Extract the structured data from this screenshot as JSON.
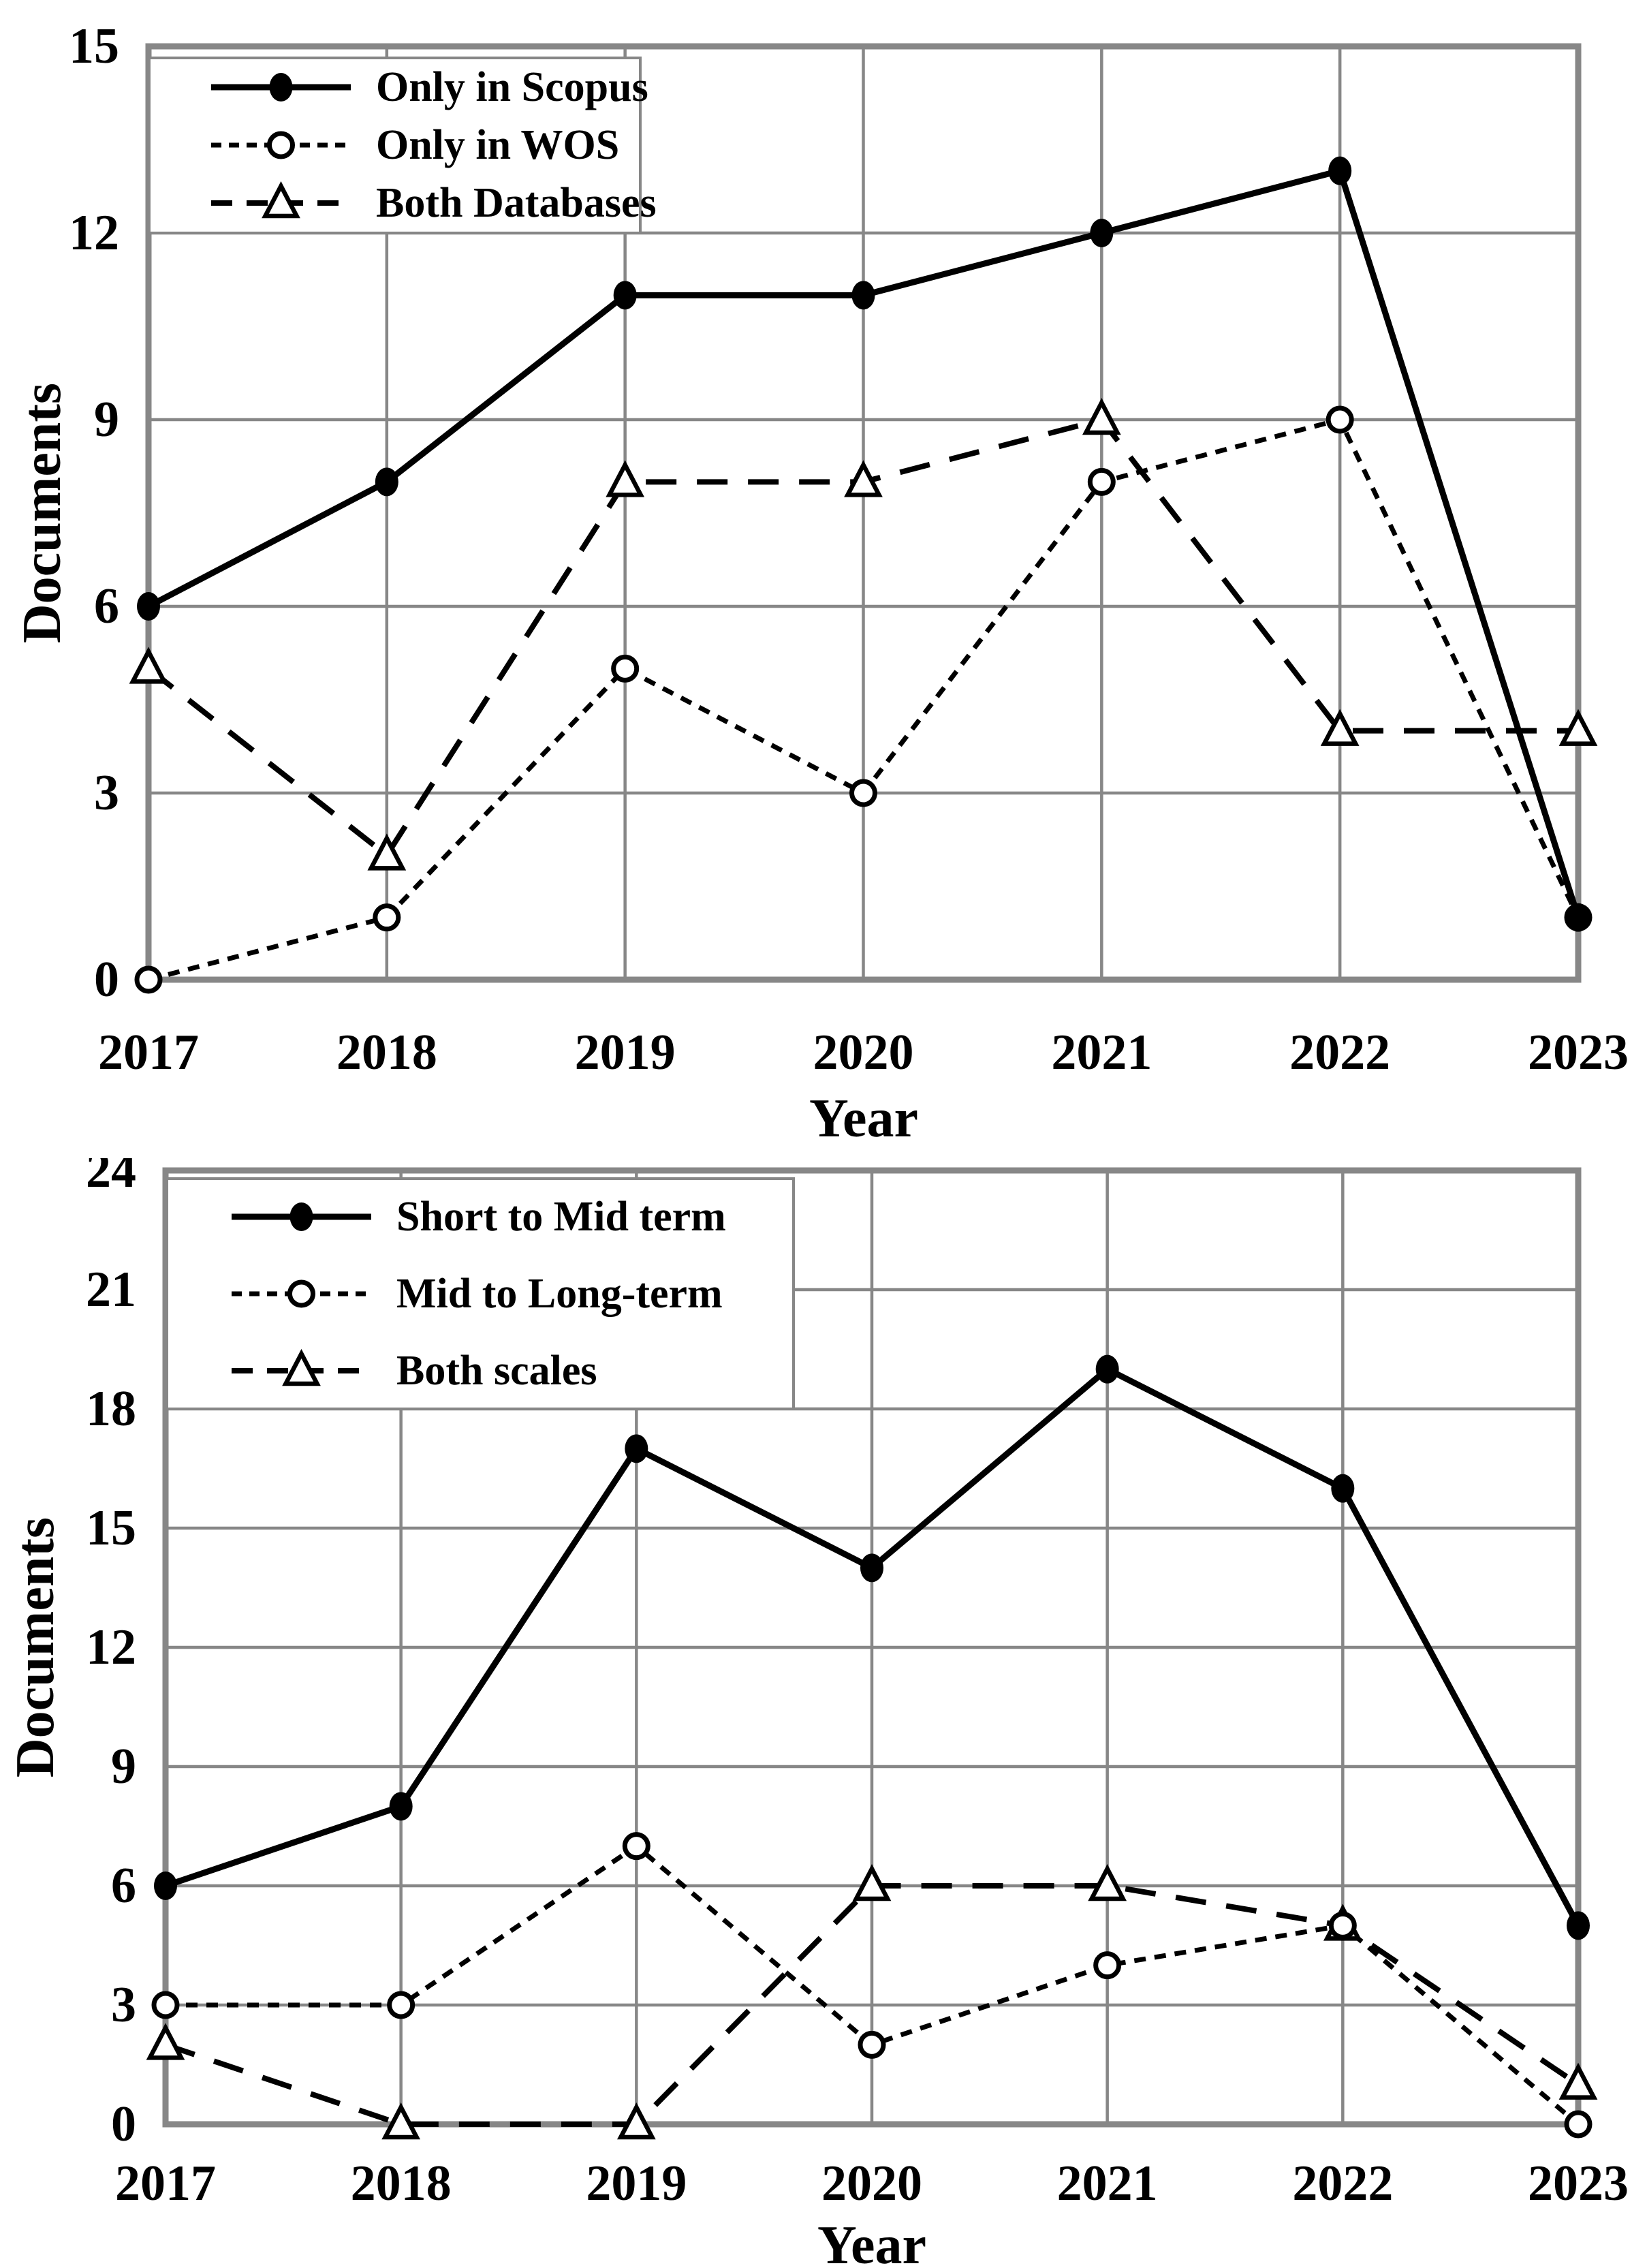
{
  "page": {
    "background": "#ffffff"
  },
  "colors": {
    "series": "#000000",
    "grid": "#878787",
    "text": "#000000",
    "legend_bg": "#ffffff"
  },
  "chart_data": [
    {
      "type": "line",
      "title": "",
      "categories": [
        "2017",
        "2018",
        "2019",
        "2020",
        "2021",
        "2022",
        "2023"
      ],
      "xlabel": "Year",
      "ylabel": "Documents",
      "ylim": [
        0,
        15
      ],
      "ytick_step": 3,
      "grid": true,
      "legend_position": "top-left",
      "series": [
        {
          "name": "Only in Scopus",
          "marker": "filled-circle-icon",
          "line": "solid",
          "values": [
            6,
            8,
            11,
            11,
            12,
            13,
            1
          ]
        },
        {
          "name": "Only in WOS",
          "marker": "open-circle-icon",
          "line": "dotted",
          "values": [
            0,
            1,
            5,
            3,
            8,
            9,
            1
          ]
        },
        {
          "name": "Both Databases",
          "marker": "open-triangle-icon",
          "line": "dashed",
          "values": [
            5,
            2,
            8,
            8,
            9,
            4,
            4
          ]
        }
      ]
    },
    {
      "type": "line",
      "title": "",
      "categories": [
        "2017",
        "2018",
        "2019",
        "2020",
        "2021",
        "2022",
        "2023"
      ],
      "xlabel": "Year",
      "ylabel": "Documents",
      "ylim": [
        0,
        24
      ],
      "ytick_step": 3,
      "grid": true,
      "legend_position": "top-left",
      "series": [
        {
          "name": "Short to Mid term",
          "marker": "filled-circle-icon",
          "line": "solid",
          "values": [
            6,
            8,
            17,
            14,
            19,
            16,
            5
          ]
        },
        {
          "name": "Mid to Long-term",
          "marker": "open-circle-icon",
          "line": "dotted",
          "values": [
            3,
            3,
            7,
            2,
            4,
            5,
            0
          ]
        },
        {
          "name": "Both scales",
          "marker": "open-triangle-icon",
          "line": "dashed",
          "values": [
            2,
            0,
            0,
            6,
            6,
            5,
            1
          ]
        }
      ]
    }
  ]
}
